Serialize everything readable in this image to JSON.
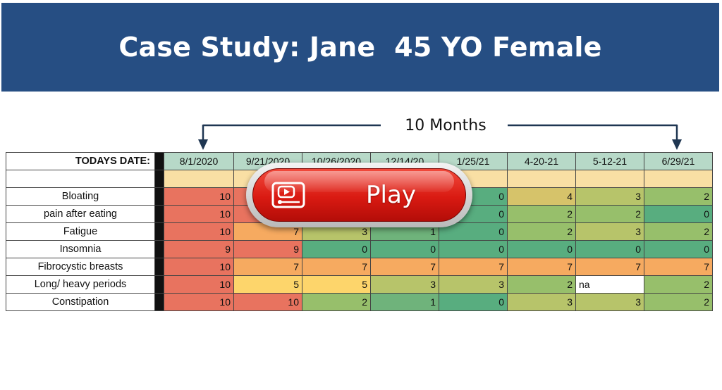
{
  "banner": {
    "title": "Case Study: Jane  45 YO Female"
  },
  "timespan": {
    "label": "10 Months"
  },
  "play_button": {
    "label": "Play",
    "icon": "video-player-icon"
  },
  "table": {
    "header_label": "TODAYS DATE:",
    "dates": [
      "8/1/2020",
      "9/21/2020",
      "10/26/2020",
      "12/14/20",
      "1/25/21",
      "4-20-21",
      "5-12-21",
      "6/29/21"
    ],
    "rows": [
      {
        "label": "Bloating",
        "values": [
          "10",
          "",
          "",
          "",
          "0",
          "4",
          "3",
          "2"
        ]
      },
      {
        "label": "pain after eating",
        "values": [
          "10",
          "",
          "",
          "",
          "0",
          "2",
          "2",
          "0"
        ]
      },
      {
        "label": "Fatigue",
        "values": [
          "10",
          "7",
          "3",
          "1",
          "0",
          "2",
          "3",
          "2"
        ]
      },
      {
        "label": "Insomnia",
        "values": [
          "9",
          "9",
          "0",
          "0",
          "0",
          "0",
          "0",
          "0"
        ]
      },
      {
        "label": "Fibrocystic breasts",
        "values": [
          "10",
          "7",
          "7",
          "7",
          "7",
          "7",
          "7",
          "7"
        ]
      },
      {
        "label": "Long/ heavy periods",
        "values": [
          "10",
          "5",
          "5",
          "3",
          "3",
          "2",
          "na",
          "2"
        ]
      },
      {
        "label": "Constipation",
        "values": [
          "10",
          "10",
          "2",
          "1",
          "0",
          "3",
          "3",
          "2"
        ]
      }
    ]
  },
  "colors": {
    "banner": "#264e83",
    "score_10": "#e8735f",
    "score_7": "#f6aa60",
    "score_5": "#fdd56b",
    "score_2": "#97bf6b",
    "score_0": "#58ad7f"
  }
}
